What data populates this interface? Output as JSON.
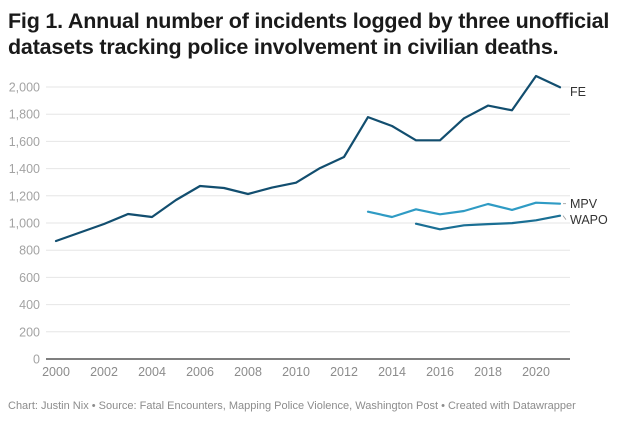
{
  "title": "Fig 1. Annual number of incidents logged by three unofficial datasets tracking police involvement in civilian deaths.",
  "footer": "Chart: Justin Nix • Source: Fatal Encounters, Mapping Police Violence, Washington Post • Created with Datawrapper",
  "chart_data": {
    "type": "line",
    "title": "Fig 1. Annual number of incidents logged by three unofficial datasets tracking police involvement in civilian deaths.",
    "xlabel": "",
    "ylabel": "",
    "xlim": [
      2000,
      2021
    ],
    "ylim": [
      0,
      2000
    ],
    "grid": true,
    "legend": "direct-labels-right",
    "x_ticks": [
      "2000",
      "2002",
      "2004",
      "2006",
      "2008",
      "2010",
      "2012",
      "2014",
      "2016",
      "2018",
      "2020"
    ],
    "y_ticks": [
      "0",
      "200",
      "400",
      "600",
      "800",
      "1,000",
      "1,200",
      "1,400",
      "1,600",
      "1,800",
      "2,000"
    ],
    "series": [
      {
        "name": "FE",
        "color": "#124e6f",
        "x": [
          2000,
          2001,
          2002,
          2003,
          2004,
          2005,
          2006,
          2007,
          2008,
          2009,
          2010,
          2011,
          2012,
          2013,
          2014,
          2015,
          2016,
          2017,
          2018,
          2019,
          2020,
          2021
        ],
        "values": [
          868,
          930,
          993,
          1066,
          1044,
          1169,
          1272,
          1257,
          1213,
          1260,
          1296,
          1404,
          1485,
          1779,
          1713,
          1608,
          1608,
          1770,
          1863,
          1829,
          2081,
          1998
        ]
      },
      {
        "name": "MPV",
        "color": "#2f9bc4",
        "x": [
          2013,
          2014,
          2015,
          2016,
          2017,
          2018,
          2019,
          2020,
          2021
        ],
        "values": [
          1083,
          1044,
          1101,
          1064,
          1088,
          1140,
          1096,
          1149,
          1142
        ]
      },
      {
        "name": "WAPO",
        "color": "#1a6f94",
        "x": [
          2015,
          2016,
          2017,
          2018,
          2019,
          2020,
          2021
        ],
        "values": [
          995,
          954,
          983,
          992,
          999,
          1020,
          1054
        ]
      }
    ]
  }
}
